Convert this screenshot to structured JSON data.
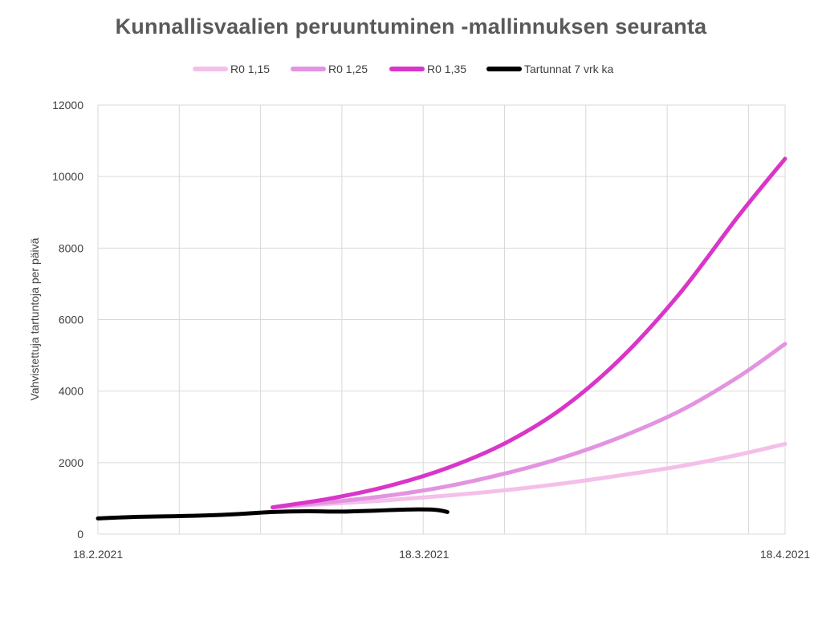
{
  "chart_data": {
    "type": "line",
    "title": "Kunnallisvaalien peruuntuminen -mallinnuksen seuranta",
    "xlabel": "",
    "ylabel": "Vahvistettuja tartuntoja per päivä",
    "x_range": [
      "2021-02-18",
      "2021-04-18"
    ],
    "x_tick_labels": [
      "18.2.2021",
      "18.3.2021",
      "18.4.2021"
    ],
    "x_tick_dates": [
      "2021-02-18",
      "2021-03-18",
      "2021-04-18"
    ],
    "ylim": [
      0,
      12000
    ],
    "y_ticks": [
      "0",
      "2000",
      "4000",
      "6000",
      "8000",
      "10000",
      "12000"
    ],
    "grid": true,
    "legend_position": "top",
    "series": [
      {
        "name": "R0 1,15",
        "color": "#f4bfe9",
        "x": [
          "2021-03-05",
          "2021-03-10",
          "2021-03-15",
          "2021-03-20",
          "2021-03-25",
          "2021-03-30",
          "2021-04-04",
          "2021-04-09",
          "2021-04-14",
          "2021-04-18"
        ],
        "y": [
          750,
          850,
          950,
          1080,
          1230,
          1420,
          1650,
          1900,
          2220,
          2520
        ]
      },
      {
        "name": "R0 1,25",
        "color": "#e393e0",
        "x": [
          "2021-03-05",
          "2021-03-10",
          "2021-03-15",
          "2021-03-20",
          "2021-03-25",
          "2021-03-30",
          "2021-04-04",
          "2021-04-09",
          "2021-04-14",
          "2021-04-18"
        ],
        "y": [
          750,
          900,
          1080,
          1340,
          1700,
          2150,
          2730,
          3450,
          4400,
          5320
        ]
      },
      {
        "name": "R0 1,35",
        "color": "#d936c9",
        "x": [
          "2021-03-05",
          "2021-03-10",
          "2021-03-15",
          "2021-03-20",
          "2021-03-25",
          "2021-03-30",
          "2021-04-04",
          "2021-04-09",
          "2021-04-14",
          "2021-04-18"
        ],
        "y": [
          750,
          1000,
          1350,
          1850,
          2550,
          3550,
          4950,
          6750,
          8900,
          10500
        ]
      },
      {
        "name": "Tartunnat 7 vrk ka",
        "color": "#000000",
        "x": [
          "2021-02-18",
          "2021-02-21",
          "2021-02-24",
          "2021-02-27",
          "2021-03-02",
          "2021-03-05",
          "2021-03-08",
          "2021-03-11",
          "2021-03-14",
          "2021-03-17",
          "2021-03-19",
          "2021-03-20"
        ],
        "y": [
          440,
          480,
          500,
          520,
          560,
          620,
          640,
          630,
          660,
          690,
          680,
          620
        ]
      }
    ]
  }
}
